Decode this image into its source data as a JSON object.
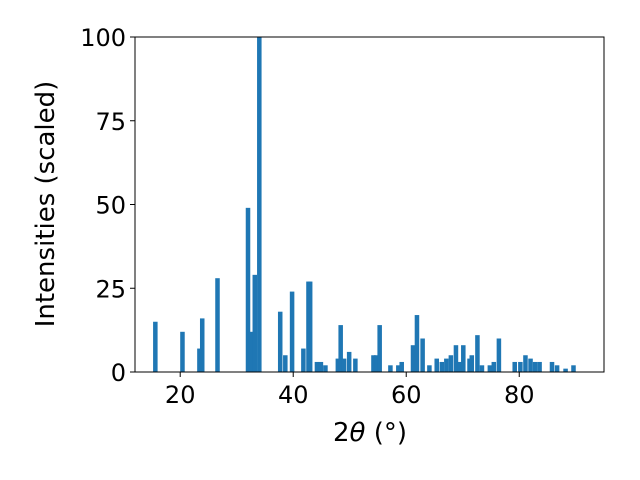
{
  "chart_data": {
    "type": "bar",
    "xlabel_prefix": "2",
    "xlabel_symbol": "θ",
    "xlabel_unit": " (°)",
    "ylabel": "Intensities (scaled)",
    "xlim": [
      12,
      95
    ],
    "ylim": [
      0,
      100
    ],
    "grid": false,
    "bar_color": "#1f77b4",
    "x_ticks": [
      20,
      40,
      60,
      80
    ],
    "y_ticks": [
      0,
      25,
      50,
      75,
      100
    ],
    "x": [
      15.6,
      20.4,
      23.4,
      23.9,
      26.6,
      32.0,
      32.5,
      33.2,
      34.0,
      37.7,
      38.6,
      39.8,
      41.8,
      42.7,
      43.0,
      44.2,
      44.9,
      45.7,
      47.9,
      48.4,
      49.0,
      49.9,
      51.0,
      54.2,
      54.7,
      55.3,
      57.2,
      58.6,
      59.2,
      61.2,
      61.9,
      62.9,
      64.1,
      65.4,
      66.3,
      67.1,
      67.9,
      68.8,
      69.5,
      70.1,
      71.2,
      71.6,
      72.6,
      73.4,
      74.8,
      75.5,
      76.4,
      79.2,
      80.2,
      81.1,
      82.0,
      82.8,
      83.6,
      85.8,
      86.7,
      88.2,
      89.6
    ],
    "values": [
      15,
      12,
      7,
      16,
      28,
      49,
      12,
      29,
      100,
      18,
      5,
      24,
      7,
      27,
      27,
      3,
      3,
      2,
      4,
      14,
      4,
      6,
      4,
      5,
      5,
      14,
      2,
      2,
      3,
      8,
      17,
      10,
      2,
      4,
      3,
      4,
      5,
      8,
      3,
      8,
      4,
      5,
      11,
      2,
      2,
      3,
      10,
      3,
      3,
      5,
      4,
      3,
      3,
      3,
      2,
      1,
      2
    ]
  }
}
